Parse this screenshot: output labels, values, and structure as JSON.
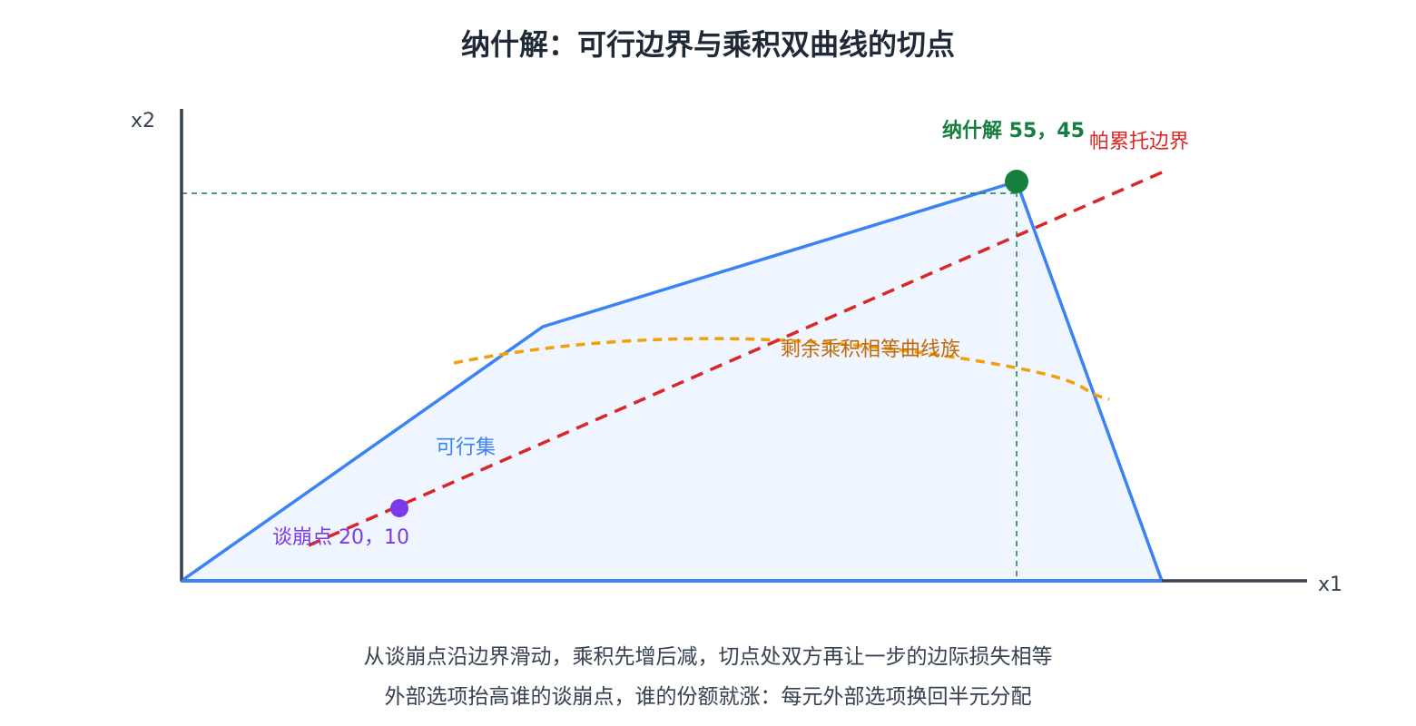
{
  "title": "纳什解：可行边界与乘积双曲线的切点",
  "axes": {
    "x_label": "x1",
    "y_label": "x2"
  },
  "labels": {
    "feasible_set": "可行集",
    "pareto_frontier": "帕累托边界",
    "iso_product_curves": "剩余乘积相等曲线族",
    "disagreement_point": "谈崩点 20，10",
    "nash_solution": "纳什解 55，45"
  },
  "points": {
    "disagreement": {
      "x": 20,
      "y": 10
    },
    "nash": {
      "x": 55,
      "y": 45
    }
  },
  "captions": [
    "从谈崩点沿边界滑动，乘积先增后减，切点处双方再让一步的边际损失相等",
    "外部选项抬高谁的谈崩点，谁的份额就涨：每元外部选项换回半元分配"
  ],
  "colors": {
    "axis": "#374151",
    "feasible_stroke": "#3b82f6",
    "feasible_fill": "#eff6ff",
    "pareto": "#dc2626",
    "iso_curve": "#f59e0b",
    "disagreement": "#7c3aed",
    "nash": "#15803d",
    "guide": "#15803d"
  }
}
